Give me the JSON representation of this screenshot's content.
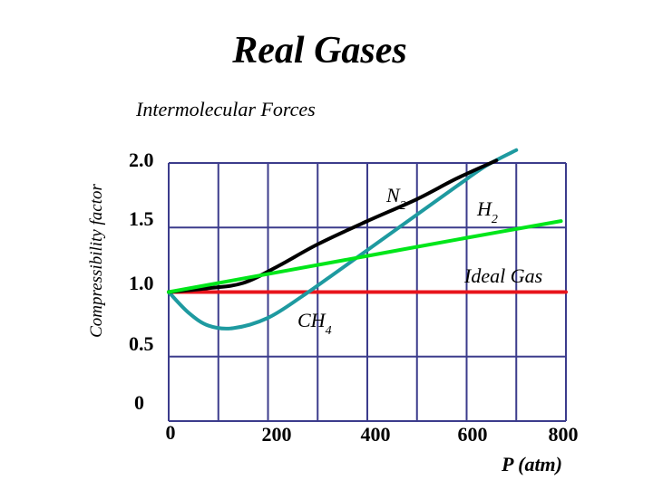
{
  "chart_data": {
    "type": "line",
    "title": "Real Gases",
    "subtitle": "Intermolecular Forces",
    "xlabel": "P (atm)",
    "ylabel": "Compressibility factor",
    "xlim": [
      0,
      800
    ],
    "ylim": [
      0,
      2.0
    ],
    "x_ticks": [
      {
        "value": 0,
        "label": "0"
      },
      {
        "value": 200,
        "label": "200"
      },
      {
        "value": 400,
        "label": "400"
      },
      {
        "value": 600,
        "label": "600"
      },
      {
        "value": 800,
        "label": "800"
      }
    ],
    "y_ticks": [
      {
        "value": 0,
        "label": "0"
      },
      {
        "value": 0.5,
        "label": "0.5"
      },
      {
        "value": 1.0,
        "label": "1.0"
      },
      {
        "value": 1.5,
        "label": "1.5"
      },
      {
        "value": 2.0,
        "label": "2.0"
      }
    ],
    "grid": true,
    "series": [
      {
        "name": "Ideal Gas",
        "color": "#e8141c",
        "x": [
          0,
          800
        ],
        "y": [
          1.0,
          1.0
        ]
      },
      {
        "name": "N2",
        "color": "#000000",
        "x": [
          0,
          80,
          150,
          220,
          300,
          400,
          500,
          580,
          660
        ],
        "y": [
          1.0,
          1.03,
          1.07,
          1.2,
          1.37,
          1.55,
          1.72,
          1.88,
          2.02
        ]
      },
      {
        "name": "H2",
        "color": "#00e61a",
        "x": [
          0,
          200,
          400,
          600,
          790
        ],
        "y": [
          1.0,
          1.14,
          1.28,
          1.42,
          1.55
        ]
      },
      {
        "name": "CH4",
        "color": "#1e9aa0",
        "x": [
          0,
          40,
          80,
          130,
          200,
          270,
          340,
          420,
          500,
          580,
          640,
          700
        ],
        "y": [
          1.0,
          0.84,
          0.74,
          0.72,
          0.8,
          0.97,
          1.16,
          1.38,
          1.6,
          1.82,
          1.98,
          2.1
        ]
      }
    ],
    "annotations": [
      {
        "text": "N",
        "subscript": "2",
        "series": "N2"
      },
      {
        "text": "H",
        "subscript": "2",
        "series": "H2"
      },
      {
        "text": "Ideal Gas",
        "subscript": "",
        "series": "Ideal Gas"
      },
      {
        "text": "CH",
        "subscript": "4",
        "series": "CH4"
      }
    ]
  }
}
